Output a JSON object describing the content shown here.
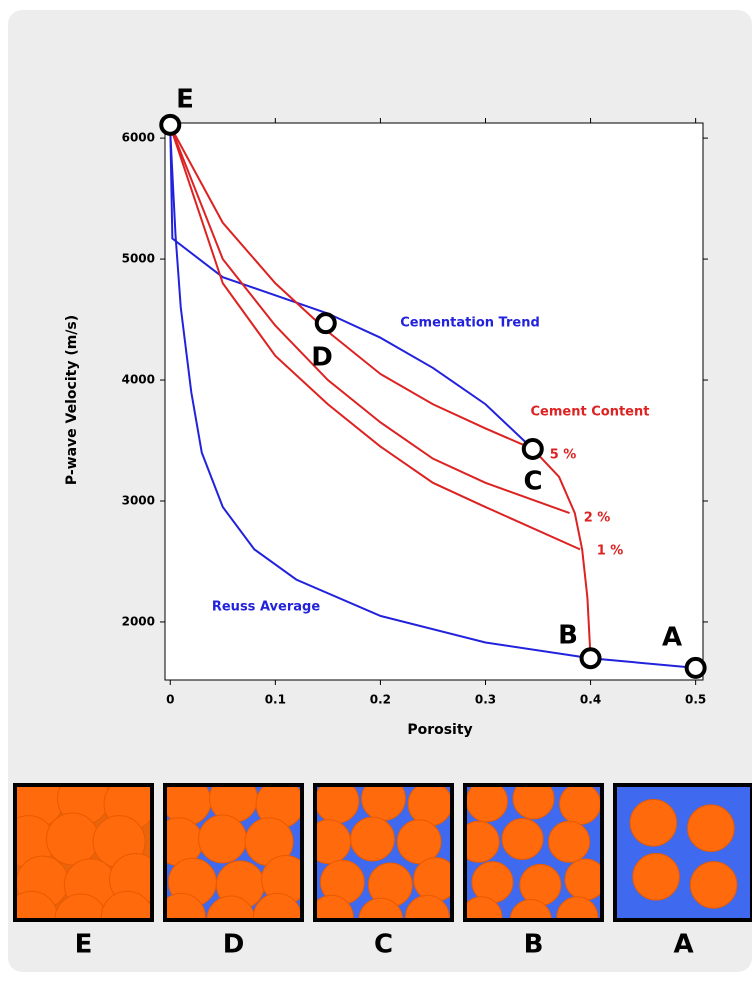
{
  "chart_data": {
    "type": "line",
    "xlabel": "Porosity",
    "ylabel": "P-wave Velocity (m/s)",
    "xlim": [
      -0.005,
      0.507
    ],
    "ylim": [
      1520,
      6125
    ],
    "xticks": [
      0,
      0.1,
      0.2,
      0.3,
      0.4,
      0.5
    ],
    "yticks": [
      2000,
      3000,
      4000,
      5000,
      6000
    ],
    "series": [
      {
        "name": "Reuss Average",
        "color": "#2222dd",
        "x": [
          0,
          0.005,
          0.01,
          0.02,
          0.03,
          0.05,
          0.08,
          0.12,
          0.2,
          0.3,
          0.4,
          0.5
        ],
        "values": [
          6050,
          5200,
          4600,
          3900,
          3400,
          2950,
          2600,
          2350,
          2050,
          1830,
          1700,
          1620
        ]
      },
      {
        "name": "Cementation Trend",
        "color": "#2222dd",
        "x": [
          0,
          0.002,
          0.05,
          0.1,
          0.15,
          0.2,
          0.25,
          0.3,
          0.345
        ],
        "values": [
          6100,
          5170,
          4850,
          4700,
          4550,
          4350,
          4100,
          3800,
          3430
        ]
      },
      {
        "name": "Cement Content",
        "color": "#dd2222",
        "x": [
          0.345,
          0.37,
          0.385,
          0.392,
          0.397,
          0.4
        ],
        "values": [
          3430,
          3200,
          2900,
          2600,
          2200,
          1700
        ]
      },
      {
        "name": "5 %",
        "color": "#dd2222",
        "x": [
          0,
          0.05,
          0.1,
          0.15,
          0.2,
          0.25,
          0.3,
          0.345
        ],
        "values": [
          6100,
          5300,
          4800,
          4400,
          4050,
          3800,
          3600,
          3430
        ]
      },
      {
        "name": "2 %",
        "color": "#dd2222",
        "x": [
          0,
          0.05,
          0.1,
          0.15,
          0.2,
          0.25,
          0.3,
          0.38
        ],
        "values": [
          6100,
          5000,
          4450,
          4000,
          3650,
          3350,
          3150,
          2900
        ]
      },
      {
        "name": "1 %",
        "color": "#dd2222",
        "x": [
          0,
          0.05,
          0.1,
          0.15,
          0.2,
          0.25,
          0.3,
          0.39
        ],
        "values": [
          6100,
          4800,
          4200,
          3800,
          3450,
          3150,
          2950,
          2600
        ]
      }
    ],
    "points": [
      {
        "label": "E",
        "x": 0,
        "y": 6110
      },
      {
        "label": "D",
        "x": 0.148,
        "y": 4470
      },
      {
        "label": "C",
        "x": 0.345,
        "y": 3430
      },
      {
        "label": "B",
        "x": 0.4,
        "y": 1700
      },
      {
        "label": "A",
        "x": 0.5,
        "y": 1620
      }
    ]
  },
  "panels": [
    "E",
    "D",
    "C",
    "B",
    "A"
  ]
}
